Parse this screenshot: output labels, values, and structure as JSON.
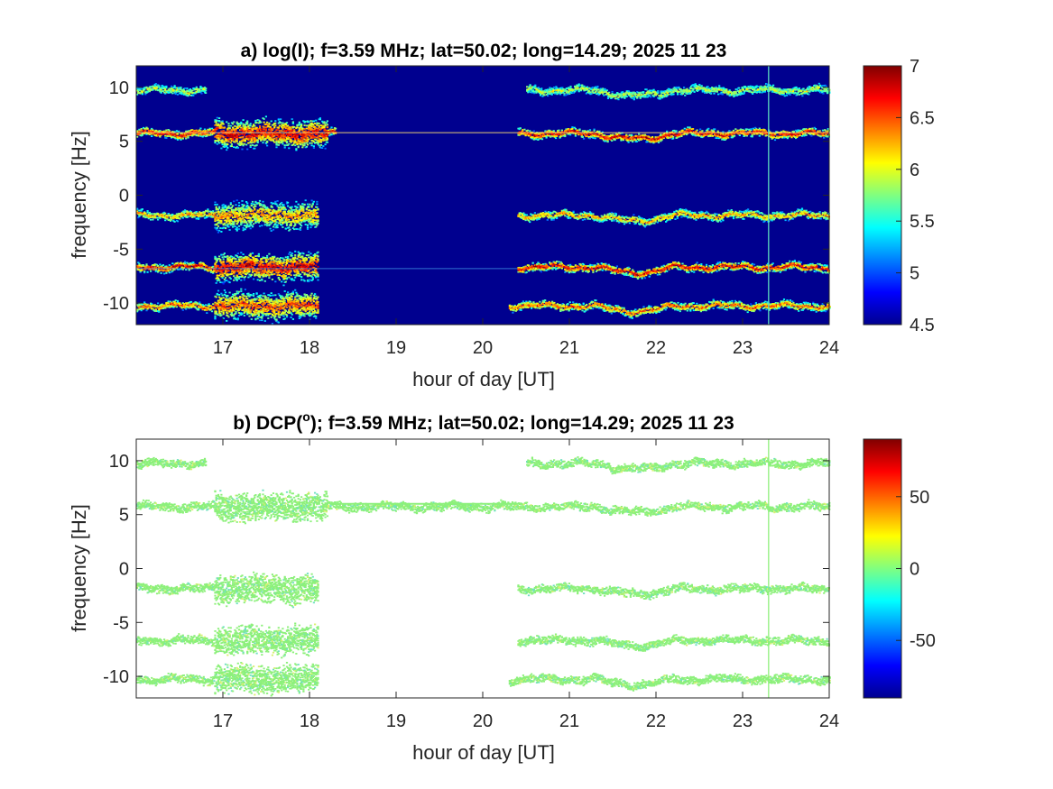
{
  "chart_data": [
    {
      "type": "heatmap",
      "title": "a) log(I); f=3.59 MHz;  lat=50.02; long=14.29; 2025 11 23",
      "xlabel": "hour of day [UT]",
      "ylabel": "frequency [Hz]",
      "xlim": [
        16,
        24
      ],
      "ylim": [
        -12,
        12
      ],
      "x_ticks": [
        "17",
        "18",
        "19",
        "20",
        "21",
        "22",
        "23",
        "24"
      ],
      "y_ticks": [
        "10",
        "5",
        "0",
        "-5",
        "-10"
      ],
      "colorbar": {
        "range": [
          4.5,
          7
        ],
        "ticks": [
          "7",
          "6.5",
          "6",
          "5.5",
          "5",
          "4.5"
        ],
        "colormap": "jet"
      },
      "background": "#00008f",
      "traces": [
        {
          "base_freq": 9.8,
          "segments": [
            [
              16.0,
              16.8
            ],
            [
              20.5,
              24.0
            ]
          ],
          "strength": 0.45
        },
        {
          "base_freq": 5.8,
          "segments": [
            [
              16.0,
              18.3
            ],
            [
              20.4,
              24.0
            ]
          ],
          "strength": 0.9
        },
        {
          "base_freq": -1.8,
          "segments": [
            [
              16.0,
              18.1
            ],
            [
              20.4,
              24.0
            ]
          ],
          "strength": 0.65
        },
        {
          "base_freq": -6.6,
          "segments": [
            [
              16.0,
              18.1
            ],
            [
              20.4,
              24.0
            ]
          ],
          "strength": 0.9
        },
        {
          "base_freq": -10.2,
          "segments": [
            [
              16.0,
              18.1
            ],
            [
              20.3,
              24.0
            ]
          ],
          "strength": 0.75
        }
      ],
      "blob_hours": [
        16.9,
        18.2
      ],
      "carrier_freq": 5.8,
      "vertical_line_hour": 23.3
    },
    {
      "type": "heatmap",
      "title": "b) DCP(",
      "title_superscript": "o",
      "title_rest": "); f=3.59 MHz;  lat=50.02; long=14.29; 2025 11 23",
      "xlabel": "hour of day [UT]",
      "ylabel": "frequency [Hz]",
      "xlim": [
        16,
        24
      ],
      "ylim": [
        -12,
        12
      ],
      "x_ticks": [
        "17",
        "18",
        "19",
        "20",
        "21",
        "22",
        "23",
        "24"
      ],
      "y_ticks": [
        "10",
        "5",
        "0",
        "-5",
        "-10"
      ],
      "colorbar": {
        "range": [
          -90,
          90
        ],
        "ticks": [
          "50",
          "0",
          "-50"
        ],
        "colormap": "jet"
      },
      "background": "#ffffff",
      "trace_color": "#8cf07a",
      "traces": [
        {
          "base_freq": 9.8,
          "segments": [
            [
              16.0,
              16.8
            ],
            [
              20.5,
              24.0
            ]
          ],
          "strength": 0.45
        },
        {
          "base_freq": 5.8,
          "segments": [
            [
              16.0,
              24.0
            ]
          ],
          "strength": 0.9
        },
        {
          "base_freq": -1.8,
          "segments": [
            [
              16.0,
              18.1
            ],
            [
              20.4,
              24.0
            ]
          ],
          "strength": 0.65
        },
        {
          "base_freq": -6.6,
          "segments": [
            [
              16.0,
              18.1
            ],
            [
              20.4,
              24.0
            ]
          ],
          "strength": 0.9
        },
        {
          "base_freq": -10.2,
          "segments": [
            [
              16.0,
              18.1
            ],
            [
              20.3,
              24.0
            ]
          ],
          "strength": 0.75
        }
      ],
      "blob_hours": [
        16.9,
        18.2
      ],
      "vertical_line_hour": 23.3
    }
  ]
}
